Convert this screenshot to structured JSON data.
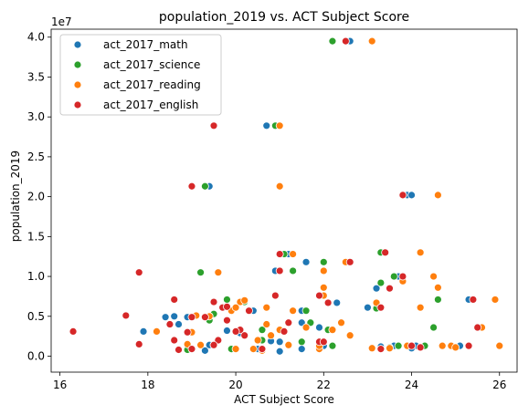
{
  "chart_data": {
    "type": "scatter",
    "title": "population_2019 vs. ACT Subject Score",
    "xlabel": "ACT Subject Score",
    "ylabel": "population_2019",
    "y_offset_text": "1e7",
    "xlim": [
      15.8,
      26.4
    ],
    "ylim": [
      -0.2,
      4.1
    ],
    "xticks": [
      16,
      18,
      20,
      22,
      24,
      26
    ],
    "yticks": [
      0.0,
      0.5,
      1.0,
      1.5,
      2.0,
      2.5,
      3.0,
      3.5,
      4.0
    ],
    "y_unit_scale": 10000000,
    "grid": false,
    "legend_position": "upper left",
    "series": [
      {
        "name": "act_2017_math",
        "color": "#1f77b4",
        "points": [
          [
            22.6,
            3.95
          ],
          [
            20.7,
            2.89
          ],
          [
            19.4,
            2.13
          ],
          [
            23.9,
            2.02
          ],
          [
            24.0,
            2.02
          ],
          [
            23.3,
            1.3
          ],
          [
            21.2,
            1.28
          ],
          [
            21.6,
            1.18
          ],
          [
            20.9,
            1.07
          ],
          [
            22.0,
            0.76
          ],
          [
            22.3,
            0.67
          ],
          [
            23.7,
            1.0
          ],
          [
            23.0,
            0.61
          ],
          [
            25.3,
            0.71
          ],
          [
            23.2,
            0.85
          ],
          [
            21.5,
            0.57
          ],
          [
            19.9,
            0.57
          ],
          [
            20.4,
            0.57
          ],
          [
            18.9,
            0.49
          ],
          [
            18.6,
            0.5
          ],
          [
            18.4,
            0.49
          ],
          [
            17.9,
            0.31
          ],
          [
            19.4,
            0.45
          ],
          [
            18.7,
            0.4
          ],
          [
            20.6,
            0.33
          ],
          [
            21.5,
            0.42
          ],
          [
            21.9,
            0.36
          ],
          [
            18.9,
            0.3
          ],
          [
            20.1,
            0.29
          ],
          [
            19.8,
            0.32
          ],
          [
            20.8,
            0.19
          ],
          [
            21.0,
            0.18
          ],
          [
            19.4,
            0.14
          ],
          [
            22.0,
            0.13
          ],
          [
            23.6,
            0.13
          ],
          [
            24.1,
            0.13
          ],
          [
            24.9,
            0.13
          ],
          [
            25.1,
            0.13
          ],
          [
            20.4,
            0.09
          ],
          [
            21.5,
            0.09
          ],
          [
            23.3,
            0.12
          ],
          [
            19.3,
            0.07
          ],
          [
            21.0,
            0.06
          ],
          [
            20.5,
            0.09
          ],
          [
            24.0,
            0.1
          ]
        ]
      },
      {
        "name": "act_2017_science",
        "color": "#2ca02c",
        "points": [
          [
            22.2,
            3.95
          ],
          [
            20.9,
            2.89
          ],
          [
            19.3,
            2.13
          ],
          [
            23.8,
            2.02
          ],
          [
            23.3,
            1.3
          ],
          [
            21.1,
            1.28
          ],
          [
            22.0,
            1.18
          ],
          [
            21.3,
            1.07
          ],
          [
            19.2,
            1.05
          ],
          [
            23.3,
            0.92
          ],
          [
            22.0,
            0.76
          ],
          [
            23.6,
            1.0
          ],
          [
            24.6,
            0.71
          ],
          [
            23.2,
            0.6
          ],
          [
            21.6,
            0.57
          ],
          [
            19.8,
            0.71
          ],
          [
            20.2,
            0.68
          ],
          [
            19.5,
            0.53
          ],
          [
            18.2,
            0.31
          ],
          [
            19.4,
            0.5
          ],
          [
            22.1,
            0.33
          ],
          [
            21.7,
            0.42
          ],
          [
            20.6,
            0.33
          ],
          [
            19.4,
            0.45
          ],
          [
            20.6,
            0.2
          ],
          [
            19.5,
            0.14
          ],
          [
            21.5,
            0.18
          ],
          [
            24.5,
            0.36
          ],
          [
            23.7,
            0.13
          ],
          [
            22.2,
            0.13
          ],
          [
            23.5,
            0.11
          ],
          [
            24.9,
            0.13
          ],
          [
            19.9,
            0.09
          ],
          [
            18.9,
            0.08
          ],
          [
            24.3,
            0.13
          ],
          [
            23.3,
            0.09
          ]
        ]
      },
      {
        "name": "act_2017_reading",
        "color": "#ff7f0e",
        "points": [
          [
            23.1,
            3.95
          ],
          [
            21.0,
            2.89
          ],
          [
            21.0,
            2.13
          ],
          [
            24.6,
            2.02
          ],
          [
            24.2,
            1.3
          ],
          [
            21.3,
            1.28
          ],
          [
            22.5,
            1.18
          ],
          [
            22.0,
            1.07
          ],
          [
            19.6,
            1.05
          ],
          [
            24.5,
            1.0
          ],
          [
            23.8,
            0.94
          ],
          [
            22.0,
            0.76
          ],
          [
            22.0,
            0.86
          ],
          [
            24.6,
            0.86
          ],
          [
            25.9,
            0.71
          ],
          [
            23.2,
            0.67
          ],
          [
            24.2,
            0.61
          ],
          [
            20.1,
            0.68
          ],
          [
            19.9,
            0.57
          ],
          [
            20.7,
            0.61
          ],
          [
            21.3,
            0.57
          ],
          [
            18.2,
            0.31
          ],
          [
            19.4,
            0.5
          ],
          [
            19.1,
            0.51
          ],
          [
            22.2,
            0.33
          ],
          [
            22.4,
            0.42
          ],
          [
            21.0,
            0.33
          ],
          [
            20.5,
            0.2
          ],
          [
            20.8,
            0.26
          ],
          [
            19.0,
            0.3
          ],
          [
            25.5,
            0.36
          ],
          [
            25.6,
            0.36
          ],
          [
            24.7,
            0.13
          ],
          [
            24.9,
            0.13
          ],
          [
            26.0,
            0.13
          ],
          [
            20.0,
            0.09
          ],
          [
            21.9,
            0.09
          ],
          [
            20.6,
            0.07
          ],
          [
            20.4,
            0.09
          ],
          [
            19.2,
            0.14
          ],
          [
            23.9,
            0.13
          ],
          [
            21.9,
            0.13
          ],
          [
            18.9,
            0.15
          ],
          [
            22.6,
            0.26
          ],
          [
            20.2,
            0.7
          ],
          [
            20.0,
            0.61
          ],
          [
            20.7,
            0.4
          ],
          [
            21.6,
            0.36
          ],
          [
            23.1,
            0.1
          ],
          [
            23.5,
            0.1
          ],
          [
            25.0,
            0.11
          ],
          [
            21.2,
            0.14
          ]
        ]
      },
      {
        "name": "act_2017_english",
        "color": "#d62728",
        "points": [
          [
            22.5,
            3.95
          ],
          [
            19.5,
            2.89
          ],
          [
            19.0,
            2.13
          ],
          [
            23.8,
            2.02
          ],
          [
            23.4,
            1.3
          ],
          [
            21.0,
            1.28
          ],
          [
            22.6,
            1.18
          ],
          [
            21.0,
            1.07
          ],
          [
            17.8,
            1.05
          ],
          [
            23.8,
            1.0
          ],
          [
            23.3,
            0.61
          ],
          [
            21.9,
            0.76
          ],
          [
            22.1,
            0.67
          ],
          [
            25.4,
            0.71
          ],
          [
            23.5,
            0.85
          ],
          [
            18.6,
            0.71
          ],
          [
            20.9,
            0.76
          ],
          [
            19.5,
            0.68
          ],
          [
            19.7,
            0.61
          ],
          [
            20.3,
            0.57
          ],
          [
            17.5,
            0.51
          ],
          [
            16.3,
            0.31
          ],
          [
            19.0,
            0.49
          ],
          [
            19.8,
            0.45
          ],
          [
            19.3,
            0.49
          ],
          [
            18.5,
            0.4
          ],
          [
            21.2,
            0.42
          ],
          [
            20.1,
            0.33
          ],
          [
            20.2,
            0.26
          ],
          [
            19.6,
            0.2
          ],
          [
            20.0,
            0.31
          ],
          [
            18.6,
            0.2
          ],
          [
            17.8,
            0.15
          ],
          [
            18.7,
            0.08
          ],
          [
            19.0,
            0.09
          ],
          [
            19.5,
            0.14
          ],
          [
            20.6,
            0.09
          ],
          [
            21.1,
            0.31
          ],
          [
            21.9,
            0.18
          ],
          [
            25.5,
            0.36
          ],
          [
            24.0,
            0.13
          ],
          [
            25.3,
            0.13
          ],
          [
            24.2,
            0.11
          ],
          [
            23.3,
            0.09
          ],
          [
            18.9,
            0.3
          ],
          [
            19.8,
            0.62
          ],
          [
            22.0,
            0.18
          ]
        ]
      }
    ]
  }
}
